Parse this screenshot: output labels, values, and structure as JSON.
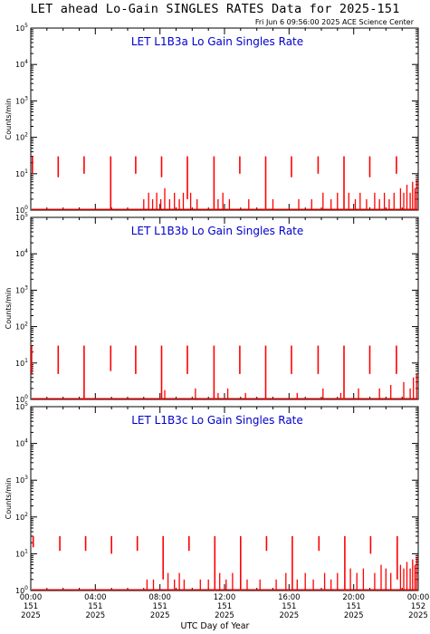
{
  "title": "LET ahead Lo-Gain SINGLES RATES Data for 2025-151",
  "timestamp": "Fri Jun  6 09:56:00 2025 ACE Science Center",
  "xlabel": "UTC Day of Year",
  "colors": {
    "series": "#ff0000",
    "panel_title": "#0000cc",
    "axes": "#000000"
  },
  "x_ticks": [
    {
      "hour": 0,
      "time": "00:00",
      "day": "151",
      "year": "2025"
    },
    {
      "hour": 4,
      "time": "04:00",
      "day": "151",
      "year": "2025"
    },
    {
      "hour": 8,
      "time": "08:00",
      "day": "151",
      "year": "2025"
    },
    {
      "hour": 12,
      "time": "12:00",
      "day": "151",
      "year": "2025"
    },
    {
      "hour": 16,
      "time": "16:00",
      "day": "151",
      "year": "2025"
    },
    {
      "hour": 20,
      "time": "20:00",
      "day": "151",
      "year": "2025"
    },
    {
      "hour": 24,
      "time": "00:00",
      "day": "152",
      "year": "2025"
    }
  ],
  "chart_data": [
    {
      "type": "line",
      "title": "LET L1B3a Lo Gain Singles Rate",
      "ylabel": "Counts/min",
      "xlabel": "UTC Day of Year",
      "xlim": [
        0,
        24
      ],
      "ylim": [
        1,
        100000
      ],
      "yscale": "log",
      "y_ticks": [
        1,
        10,
        100,
        1000,
        10000,
        100000
      ],
      "grid": false,
      "spikes": [
        {
          "x": 0.1,
          "y": 30,
          "y_low": 10
        },
        {
          "x": 1.7,
          "y": 30,
          "y_low": 8
        },
        {
          "x": 3.3,
          "y": 30,
          "y_low": 10
        },
        {
          "x": 4.95,
          "y": 30,
          "y_low": 1
        },
        {
          "x": 6.5,
          "y": 30,
          "y_low": 10
        },
        {
          "x": 8.1,
          "y": 30,
          "y_low": 8
        },
        {
          "x": 9.7,
          "y": 30,
          "y_low": 2
        },
        {
          "x": 11.35,
          "y": 30,
          "y_low": 1
        },
        {
          "x": 12.95,
          "y": 30,
          "y_low": 10
        },
        {
          "x": 14.55,
          "y": 30,
          "y_low": 1
        },
        {
          "x": 16.15,
          "y": 30,
          "y_low": 8
        },
        {
          "x": 17.8,
          "y": 30,
          "y_low": 10
        },
        {
          "x": 19.4,
          "y": 30,
          "y_low": 1
        },
        {
          "x": 21.0,
          "y": 30,
          "y_low": 8
        },
        {
          "x": 22.65,
          "y": 30,
          "y_low": 10
        }
      ],
      "noise": [
        {
          "x": 7.0,
          "y": 2
        },
        {
          "x": 7.3,
          "y": 3
        },
        {
          "x": 7.55,
          "y": 2
        },
        {
          "x": 7.8,
          "y": 3
        },
        {
          "x": 8.05,
          "y": 2
        },
        {
          "x": 8.3,
          "y": 4
        },
        {
          "x": 8.6,
          "y": 2
        },
        {
          "x": 8.9,
          "y": 3
        },
        {
          "x": 9.2,
          "y": 2
        },
        {
          "x": 9.45,
          "y": 3
        },
        {
          "x": 9.9,
          "y": 3
        },
        {
          "x": 10.3,
          "y": 2
        },
        {
          "x": 11.6,
          "y": 2
        },
        {
          "x": 11.9,
          "y": 3
        },
        {
          "x": 12.3,
          "y": 2
        },
        {
          "x": 13.5,
          "y": 2
        },
        {
          "x": 15.0,
          "y": 2
        },
        {
          "x": 16.6,
          "y": 2
        },
        {
          "x": 17.4,
          "y": 2
        },
        {
          "x": 18.1,
          "y": 3
        },
        {
          "x": 18.6,
          "y": 2
        },
        {
          "x": 19.0,
          "y": 3
        },
        {
          "x": 19.7,
          "y": 3
        },
        {
          "x": 20.1,
          "y": 2
        },
        {
          "x": 20.4,
          "y": 3
        },
        {
          "x": 20.8,
          "y": 2
        },
        {
          "x": 21.3,
          "y": 3
        },
        {
          "x": 21.6,
          "y": 2
        },
        {
          "x": 21.9,
          "y": 3
        },
        {
          "x": 22.2,
          "y": 2
        },
        {
          "x": 22.5,
          "y": 3
        },
        {
          "x": 22.9,
          "y": 4
        },
        {
          "x": 23.1,
          "y": 3
        },
        {
          "x": 23.3,
          "y": 5
        },
        {
          "x": 23.5,
          "y": 3
        },
        {
          "x": 23.65,
          "y": 6
        },
        {
          "x": 23.8,
          "y": 4
        },
        {
          "x": 23.9,
          "y": 7
        }
      ]
    },
    {
      "type": "line",
      "title": "LET L1B3b Lo Gain Singles Rate",
      "ylabel": "Counts/min",
      "xlabel": "UTC Day of Year",
      "xlim": [
        0,
        24
      ],
      "ylim": [
        1,
        100000
      ],
      "yscale": "log",
      "y_ticks": [
        1,
        10,
        100,
        1000,
        10000,
        100000
      ],
      "grid": false,
      "spikes": [
        {
          "x": 0.05,
          "y": 30,
          "y_low": 5
        },
        {
          "x": 1.7,
          "y": 30,
          "y_low": 5
        },
        {
          "x": 3.3,
          "y": 30,
          "y_low": 1
        },
        {
          "x": 4.95,
          "y": 30,
          "y_low": 6
        },
        {
          "x": 6.5,
          "y": 30,
          "y_low": 5
        },
        {
          "x": 8.1,
          "y": 30,
          "y_low": 1
        },
        {
          "x": 9.7,
          "y": 30,
          "y_low": 5
        },
        {
          "x": 11.35,
          "y": 30,
          "y_low": 1
        },
        {
          "x": 12.95,
          "y": 30,
          "y_low": 5
        },
        {
          "x": 14.55,
          "y": 30,
          "y_low": 1
        },
        {
          "x": 16.15,
          "y": 30,
          "y_low": 5
        },
        {
          "x": 17.8,
          "y": 30,
          "y_low": 5
        },
        {
          "x": 19.4,
          "y": 30,
          "y_low": 1
        },
        {
          "x": 21.0,
          "y": 30,
          "y_low": 5
        },
        {
          "x": 22.65,
          "y": 30,
          "y_low": 5
        }
      ],
      "noise": [
        {
          "x": 8.3,
          "y": 1.8
        },
        {
          "x": 10.2,
          "y": 2
        },
        {
          "x": 11.6,
          "y": 1.5
        },
        {
          "x": 12.2,
          "y": 2
        },
        {
          "x": 13.3,
          "y": 1.5
        },
        {
          "x": 16.5,
          "y": 1.5
        },
        {
          "x": 18.1,
          "y": 2
        },
        {
          "x": 19.2,
          "y": 1.5
        },
        {
          "x": 20.3,
          "y": 2
        },
        {
          "x": 21.6,
          "y": 2
        },
        {
          "x": 22.3,
          "y": 2.5
        },
        {
          "x": 23.1,
          "y": 3
        },
        {
          "x": 23.5,
          "y": 2
        },
        {
          "x": 23.7,
          "y": 4
        },
        {
          "x": 23.9,
          "y": 5
        }
      ]
    },
    {
      "type": "line",
      "title": "LET L1B3c Lo Gain Singles Rate",
      "ylabel": "Counts/min",
      "xlabel": "UTC Day of Year",
      "xlim": [
        0,
        24
      ],
      "ylim": [
        1,
        100000
      ],
      "yscale": "log",
      "y_ticks": [
        1,
        10,
        100,
        1000,
        10000,
        100000
      ],
      "grid": false,
      "spikes": [
        {
          "x": 0.15,
          "y": 30,
          "y_low": 15
        },
        {
          "x": 1.8,
          "y": 30,
          "y_low": 12
        },
        {
          "x": 3.4,
          "y": 30,
          "y_low": 12
        },
        {
          "x": 5.0,
          "y": 30,
          "y_low": 10
        },
        {
          "x": 6.6,
          "y": 30,
          "y_low": 12
        },
        {
          "x": 8.2,
          "y": 30,
          "y_low": 2
        },
        {
          "x": 9.8,
          "y": 30,
          "y_low": 12
        },
        {
          "x": 11.4,
          "y": 30,
          "y_low": 1
        },
        {
          "x": 13.0,
          "y": 30,
          "y_low": 1
        },
        {
          "x": 14.6,
          "y": 30,
          "y_low": 12
        },
        {
          "x": 16.2,
          "y": 30,
          "y_low": 1
        },
        {
          "x": 17.85,
          "y": 30,
          "y_low": 12
        },
        {
          "x": 19.45,
          "y": 30,
          "y_low": 1
        },
        {
          "x": 21.05,
          "y": 30,
          "y_low": 10
        },
        {
          "x": 22.7,
          "y": 30,
          "y_low": 2
        }
      ],
      "noise": [
        {
          "x": 7.2,
          "y": 2
        },
        {
          "x": 7.6,
          "y": 2
        },
        {
          "x": 8.5,
          "y": 3
        },
        {
          "x": 8.9,
          "y": 2
        },
        {
          "x": 9.2,
          "y": 3
        },
        {
          "x": 9.5,
          "y": 2
        },
        {
          "x": 10.5,
          "y": 2
        },
        {
          "x": 11.0,
          "y": 2
        },
        {
          "x": 11.7,
          "y": 3
        },
        {
          "x": 12.1,
          "y": 2
        },
        {
          "x": 12.5,
          "y": 3
        },
        {
          "x": 13.4,
          "y": 2
        },
        {
          "x": 14.2,
          "y": 2
        },
        {
          "x": 15.2,
          "y": 2
        },
        {
          "x": 15.8,
          "y": 3
        },
        {
          "x": 16.5,
          "y": 2
        },
        {
          "x": 17.0,
          "y": 3
        },
        {
          "x": 17.5,
          "y": 2
        },
        {
          "x": 18.2,
          "y": 3
        },
        {
          "x": 18.6,
          "y": 2
        },
        {
          "x": 19.0,
          "y": 3
        },
        {
          "x": 19.8,
          "y": 4
        },
        {
          "x": 20.2,
          "y": 3
        },
        {
          "x": 20.6,
          "y": 4
        },
        {
          "x": 21.3,
          "y": 3
        },
        {
          "x": 21.7,
          "y": 5
        },
        {
          "x": 22.0,
          "y": 4
        },
        {
          "x": 22.3,
          "y": 3
        },
        {
          "x": 22.9,
          "y": 5
        },
        {
          "x": 23.1,
          "y": 4
        },
        {
          "x": 23.3,
          "y": 6
        },
        {
          "x": 23.5,
          "y": 4
        },
        {
          "x": 23.65,
          "y": 7
        },
        {
          "x": 23.8,
          "y": 5
        },
        {
          "x": 23.9,
          "y": 8
        }
      ]
    }
  ]
}
